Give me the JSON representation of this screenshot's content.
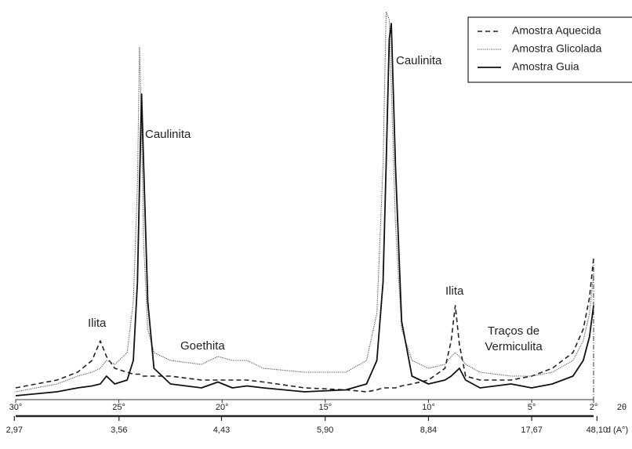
{
  "chart_data": {
    "type": "line",
    "xlim": [
      30,
      2
    ],
    "ylim": [
      0,
      100
    ],
    "xticks": [
      {
        "value": 30,
        "label": "30°"
      },
      {
        "value": 25,
        "label": "25°"
      },
      {
        "value": 20,
        "label": "20°"
      },
      {
        "value": 15,
        "label": "15°"
      },
      {
        "value": 10,
        "label": "10°"
      },
      {
        "value": 5,
        "label": "5°"
      },
      {
        "value": 2,
        "label": "2°"
      }
    ],
    "x_label": "2θ",
    "x2ticks": [
      {
        "value": 2.97,
        "label": "2,97"
      },
      {
        "value": 3.56,
        "label": "3,56"
      },
      {
        "value": 4.43,
        "label": "4,43"
      },
      {
        "value": 5.9,
        "label": "5,90"
      },
      {
        "value": 8.84,
        "label": "8,84"
      },
      {
        "value": 17.67,
        "label": "17,67"
      },
      {
        "value": 48.1,
        "label": "48,10"
      }
    ],
    "x2_label": "d (A°)",
    "legend": "upper right",
    "annotations": [
      "Caulinita",
      "Caulinita",
      "Ilita",
      "Goethita",
      "Ilita",
      "Traços de Vermiculita"
    ],
    "x": [
      30,
      28,
      27,
      26.3,
      25.9,
      25.6,
      25.2,
      24.6,
      24.3,
      24.1,
      24.0,
      23.9,
      23.8,
      23.6,
      23.3,
      22.5,
      21,
      20.2,
      19.5,
      18.8,
      18,
      16,
      14,
      13,
      12.5,
      12.2,
      12.05,
      11.9,
      11.8,
      11.6,
      11.3,
      10.8,
      10,
      9.2,
      8.9,
      8.7,
      8.5,
      8.2,
      7.5,
      6,
      5,
      4,
      3,
      2.5,
      2.2,
      2
    ],
    "series": [
      {
        "name": "Amostra Aquecida",
        "color": "#222222",
        "style": "dashed",
        "values": [
          3,
          5,
          7,
          10,
          15,
          11,
          8,
          7,
          6.5,
          6.5,
          6.5,
          6,
          6,
          6,
          6,
          6,
          5,
          5,
          5,
          5,
          4.5,
          3,
          2.5,
          2,
          2.5,
          3,
          3,
          3,
          3,
          3,
          3.5,
          4,
          5,
          8,
          15,
          24,
          14,
          6,
          5,
          5,
          6,
          8,
          12,
          18,
          26,
          36
        ]
      },
      {
        "name": "Amostra Glicolada",
        "color": "#555555",
        "style": "dotted",
        "values": [
          2,
          4,
          6,
          7,
          8,
          10,
          9,
          12,
          25,
          55,
          90,
          70,
          40,
          18,
          12,
          10,
          9,
          11,
          10,
          10,
          8,
          7,
          7,
          10,
          22,
          60,
          99,
          97,
          80,
          45,
          18,
          10,
          8,
          9,
          11,
          12,
          11,
          9,
          7,
          6,
          6,
          7,
          10,
          15,
          22,
          32
        ]
      },
      {
        "name": "Amostra Guia",
        "color": "#111111",
        "style": "solid",
        "values": [
          1,
          2,
          3,
          3.5,
          4,
          6,
          4,
          5,
          10,
          30,
          55,
          78,
          60,
          25,
          8,
          4,
          3,
          4.5,
          3,
          3.5,
          3,
          2,
          2.5,
          4,
          10,
          30,
          60,
          92,
          96,
          60,
          20,
          6,
          4,
          5,
          6,
          7,
          8,
          5,
          3,
          4,
          3,
          4,
          6,
          10,
          16,
          24
        ]
      }
    ]
  }
}
